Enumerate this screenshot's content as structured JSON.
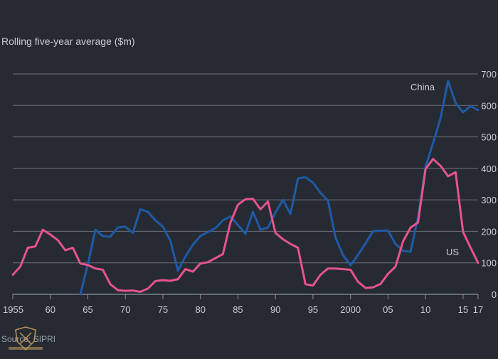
{
  "chart_data": {
    "type": "line",
    "ylabel": "Rolling five-year average ($m)",
    "ylim": [
      0,
      700
    ],
    "yticks": [
      0,
      100,
      200,
      300,
      400,
      500,
      600,
      700
    ],
    "xlim": [
      1955,
      2017
    ],
    "xticks": [
      {
        "value": 1955,
        "label": "1955"
      },
      {
        "value": 1960,
        "label": "60"
      },
      {
        "value": 1965,
        "label": "65"
      },
      {
        "value": 1970,
        "label": "70"
      },
      {
        "value": 1975,
        "label": "75"
      },
      {
        "value": 1980,
        "label": "80"
      },
      {
        "value": 1985,
        "label": "85"
      },
      {
        "value": 1990,
        "label": "90"
      },
      {
        "value": 1995,
        "label": "95"
      },
      {
        "value": 2000,
        "label": "2000"
      },
      {
        "value": 2005,
        "label": "05"
      },
      {
        "value": 2010,
        "label": "10"
      },
      {
        "value": 2015,
        "label": "15"
      },
      {
        "value": 2017,
        "label": "17"
      }
    ],
    "grid": true,
    "series": [
      {
        "name": "China",
        "label": "China",
        "color": "#1f5aa6",
        "x": [
          1964,
          1965,
          1966,
          1967,
          1968,
          1969,
          1970,
          1971,
          1972,
          1973,
          1974,
          1975,
          1976,
          1977,
          1978,
          1979,
          1980,
          1981,
          1982,
          1983,
          1984,
          1985,
          1986,
          1987,
          1988,
          1989,
          1990,
          1991,
          1992,
          1993,
          1994,
          1995,
          1996,
          1997,
          1998,
          1999,
          2000,
          2001,
          2002,
          2003,
          2004,
          2005,
          2006,
          2007,
          2008,
          2009,
          2010,
          2011,
          2012,
          2013,
          2014,
          2015,
          2016,
          2017
        ],
        "values": [
          0,
          95,
          205,
          185,
          183,
          212,
          215,
          195,
          270,
          262,
          235,
          215,
          170,
          75,
          120,
          158,
          185,
          198,
          210,
          235,
          248,
          220,
          192,
          262,
          205,
          212,
          260,
          300,
          255,
          368,
          372,
          355,
          322,
          298,
          180,
          125,
          92,
          125,
          162,
          200,
          202,
          202,
          160,
          138,
          135,
          245,
          405,
          480,
          560,
          678,
          608,
          578,
          598,
          585
        ]
      },
      {
        "name": "US",
        "label": "US",
        "color": "#e8548b",
        "x": [
          1955,
          1956,
          1957,
          1958,
          1959,
          1960,
          1961,
          1962,
          1963,
          1964,
          1965,
          1966,
          1967,
          1968,
          1969,
          1970,
          1971,
          1972,
          1973,
          1974,
          1975,
          1976,
          1977,
          1978,
          1979,
          1980,
          1981,
          1982,
          1983,
          1984,
          1985,
          1986,
          1987,
          1988,
          1989,
          1990,
          1991,
          1992,
          1993,
          1994,
          1995,
          1996,
          1997,
          1998,
          1999,
          2000,
          2001,
          2002,
          2003,
          2004,
          2005,
          2006,
          2007,
          2008,
          2009,
          2010,
          2011,
          2012,
          2013,
          2014,
          2015,
          2016,
          2017
        ],
        "values": [
          62,
          88,
          148,
          152,
          205,
          190,
          172,
          140,
          148,
          98,
          93,
          82,
          78,
          32,
          13,
          11,
          12,
          8,
          18,
          42,
          45,
          43,
          48,
          80,
          72,
          98,
          102,
          115,
          128,
          228,
          285,
          302,
          303,
          270,
          295,
          195,
          175,
          160,
          148,
          32,
          28,
          62,
          82,
          82,
          80,
          78,
          40,
          20,
          22,
          33,
          65,
          88,
          168,
          212,
          228,
          398,
          430,
          408,
          375,
          388,
          198,
          148,
          100
        ]
      }
    ],
    "source": "Source: SIPRI"
  }
}
